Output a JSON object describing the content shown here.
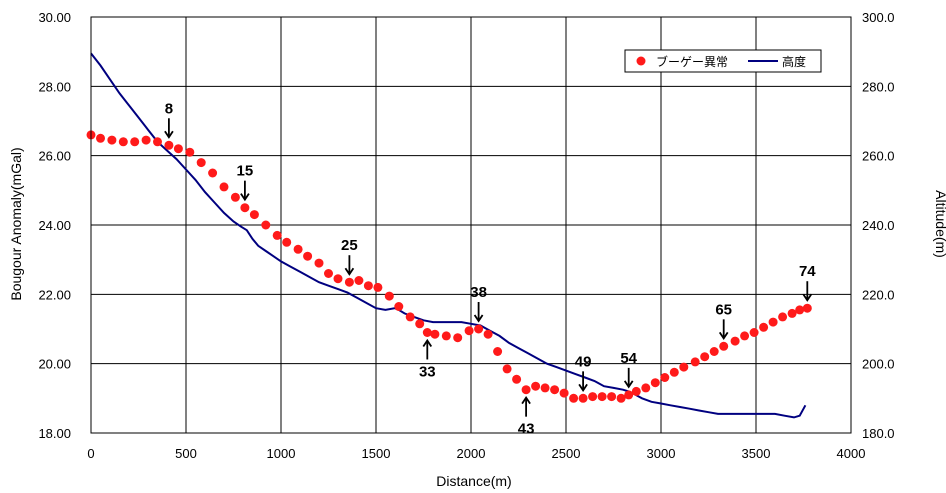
{
  "chart_data": {
    "type": "scatter",
    "title": "",
    "xlabel": "Distance(m)",
    "ylabel": "Bougour Anomaly(mGal)",
    "y2label": "Altitude(m)",
    "xlim": [
      0,
      4000
    ],
    "ylim": [
      18,
      30
    ],
    "y2lim": [
      180,
      300
    ],
    "xticks": [
      "0",
      "500",
      "1000",
      "1500",
      "2000",
      "2500",
      "3000",
      "3500",
      "4000"
    ],
    "yticks": [
      "18.00",
      "20.00",
      "22.00",
      "24.00",
      "26.00",
      "28.00",
      "30.00"
    ],
    "y2ticks": [
      "180.0",
      "200.0",
      "220.0",
      "240.0",
      "260.0",
      "280.0",
      "300.0"
    ],
    "grid": true,
    "legend_position": "top-right",
    "legend": {
      "anomaly": "ブーゲー異常",
      "altitude": "高度"
    },
    "colors": {
      "anomaly": "#ff1a1a",
      "altitude": "#000080",
      "grid": "#000000"
    },
    "series": [
      {
        "name": "ブーゲー異常",
        "axis": "left",
        "style": "markers",
        "points": [
          [
            0,
            26.6
          ],
          [
            50,
            26.5
          ],
          [
            110,
            26.45
          ],
          [
            170,
            26.4
          ],
          [
            230,
            26.4
          ],
          [
            290,
            26.45
          ],
          [
            350,
            26.4
          ],
          [
            410,
            26.3
          ],
          [
            460,
            26.2
          ],
          [
            520,
            26.1
          ],
          [
            580,
            25.8
          ],
          [
            640,
            25.5
          ],
          [
            700,
            25.1
          ],
          [
            760,
            24.8
          ],
          [
            810,
            24.5
          ],
          [
            860,
            24.3
          ],
          [
            920,
            24.0
          ],
          [
            980,
            23.7
          ],
          [
            1030,
            23.5
          ],
          [
            1090,
            23.3
          ],
          [
            1140,
            23.1
          ],
          [
            1200,
            22.9
          ],
          [
            1250,
            22.6
          ],
          [
            1300,
            22.45
          ],
          [
            1360,
            22.35
          ],
          [
            1410,
            22.4
          ],
          [
            1460,
            22.25
          ],
          [
            1510,
            22.2
          ],
          [
            1570,
            21.95
          ],
          [
            1620,
            21.65
          ],
          [
            1680,
            21.35
          ],
          [
            1730,
            21.15
          ],
          [
            1770,
            20.9
          ],
          [
            1810,
            20.85
          ],
          [
            1870,
            20.8
          ],
          [
            1930,
            20.75
          ],
          [
            1990,
            20.95
          ],
          [
            2040,
            21.0
          ],
          [
            2090,
            20.85
          ],
          [
            2140,
            20.35
          ],
          [
            2190,
            19.85
          ],
          [
            2240,
            19.55
          ],
          [
            2290,
            19.25
          ],
          [
            2340,
            19.35
          ],
          [
            2390,
            19.3
          ],
          [
            2440,
            19.25
          ],
          [
            2490,
            19.15
          ],
          [
            2540,
            19.0
          ],
          [
            2590,
            19.0
          ],
          [
            2640,
            19.05
          ],
          [
            2690,
            19.05
          ],
          [
            2740,
            19.05
          ],
          [
            2790,
            19.0
          ],
          [
            2830,
            19.1
          ],
          [
            2870,
            19.2
          ],
          [
            2920,
            19.3
          ],
          [
            2970,
            19.45
          ],
          [
            3020,
            19.6
          ],
          [
            3070,
            19.75
          ],
          [
            3120,
            19.9
          ],
          [
            3180,
            20.05
          ],
          [
            3230,
            20.2
          ],
          [
            3280,
            20.35
          ],
          [
            3330,
            20.5
          ],
          [
            3390,
            20.65
          ],
          [
            3440,
            20.8
          ],
          [
            3490,
            20.9
          ],
          [
            3540,
            21.05
          ],
          [
            3590,
            21.2
          ],
          [
            3640,
            21.35
          ],
          [
            3690,
            21.45
          ],
          [
            3730,
            21.55
          ],
          [
            3770,
            21.6
          ]
        ]
      },
      {
        "name": "高度",
        "axis": "right",
        "style": "line",
        "points": [
          [
            0,
            289.5
          ],
          [
            50,
            286
          ],
          [
            100,
            282
          ],
          [
            150,
            278
          ],
          [
            200,
            274.5
          ],
          [
            250,
            271
          ],
          [
            300,
            267.5
          ],
          [
            350,
            264
          ],
          [
            400,
            261.5
          ],
          [
            450,
            259
          ],
          [
            500,
            256
          ],
          [
            550,
            253
          ],
          [
            600,
            249.5
          ],
          [
            650,
            246.5
          ],
          [
            700,
            243.5
          ],
          [
            750,
            241
          ],
          [
            790,
            239.5
          ],
          [
            820,
            238.5
          ],
          [
            850,
            236
          ],
          [
            880,
            234
          ],
          [
            920,
            232.5
          ],
          [
            960,
            231
          ],
          [
            1000,
            229.5
          ],
          [
            1050,
            228
          ],
          [
            1100,
            226.5
          ],
          [
            1150,
            225
          ],
          [
            1200,
            223.5
          ],
          [
            1250,
            222.5
          ],
          [
            1300,
            221.5
          ],
          [
            1350,
            220.5
          ],
          [
            1400,
            219
          ],
          [
            1450,
            217.5
          ],
          [
            1500,
            216
          ],
          [
            1550,
            215.5
          ],
          [
            1600,
            216
          ],
          [
            1620,
            215.5
          ],
          [
            1650,
            214.5
          ],
          [
            1700,
            213.5
          ],
          [
            1750,
            212.5
          ],
          [
            1800,
            212
          ],
          [
            1850,
            212
          ],
          [
            1900,
            212
          ],
          [
            1950,
            212
          ],
          [
            2000,
            211.5
          ],
          [
            2050,
            211
          ],
          [
            2100,
            209.5
          ],
          [
            2150,
            208
          ],
          [
            2200,
            206
          ],
          [
            2250,
            204.5
          ],
          [
            2300,
            203
          ],
          [
            2350,
            201.5
          ],
          [
            2400,
            200
          ],
          [
            2450,
            199
          ],
          [
            2500,
            198
          ],
          [
            2550,
            197
          ],
          [
            2600,
            196
          ],
          [
            2650,
            195
          ],
          [
            2700,
            193.5
          ],
          [
            2750,
            193
          ],
          [
            2800,
            192.5
          ],
          [
            2830,
            192
          ],
          [
            2850,
            191.5
          ],
          [
            2900,
            190
          ],
          [
            2950,
            189
          ],
          [
            3000,
            188.5
          ],
          [
            3050,
            188
          ],
          [
            3100,
            187.5
          ],
          [
            3150,
            187
          ],
          [
            3200,
            186.5
          ],
          [
            3250,
            186
          ],
          [
            3300,
            185.5
          ],
          [
            3350,
            185.5
          ],
          [
            3400,
            185.5
          ],
          [
            3450,
            185.5
          ],
          [
            3500,
            185.5
          ],
          [
            3550,
            185.5
          ],
          [
            3600,
            185.5
          ],
          [
            3650,
            185
          ],
          [
            3700,
            184.5
          ],
          [
            3730,
            185
          ],
          [
            3760,
            188
          ]
        ]
      }
    ],
    "annotations": [
      {
        "label": "8",
        "x": 410,
        "direction": "down"
      },
      {
        "label": "15",
        "x": 810,
        "direction": "down"
      },
      {
        "label": "25",
        "x": 1360,
        "direction": "down"
      },
      {
        "label": "33",
        "x": 1770,
        "direction": "up"
      },
      {
        "label": "38",
        "x": 2040,
        "direction": "down"
      },
      {
        "label": "43",
        "x": 2290,
        "direction": "up"
      },
      {
        "label": "49",
        "x": 2590,
        "direction": "down"
      },
      {
        "label": "54",
        "x": 2830,
        "direction": "down"
      },
      {
        "label": "65",
        "x": 3330,
        "direction": "down"
      },
      {
        "label": "74",
        "x": 3770,
        "direction": "down"
      }
    ]
  }
}
